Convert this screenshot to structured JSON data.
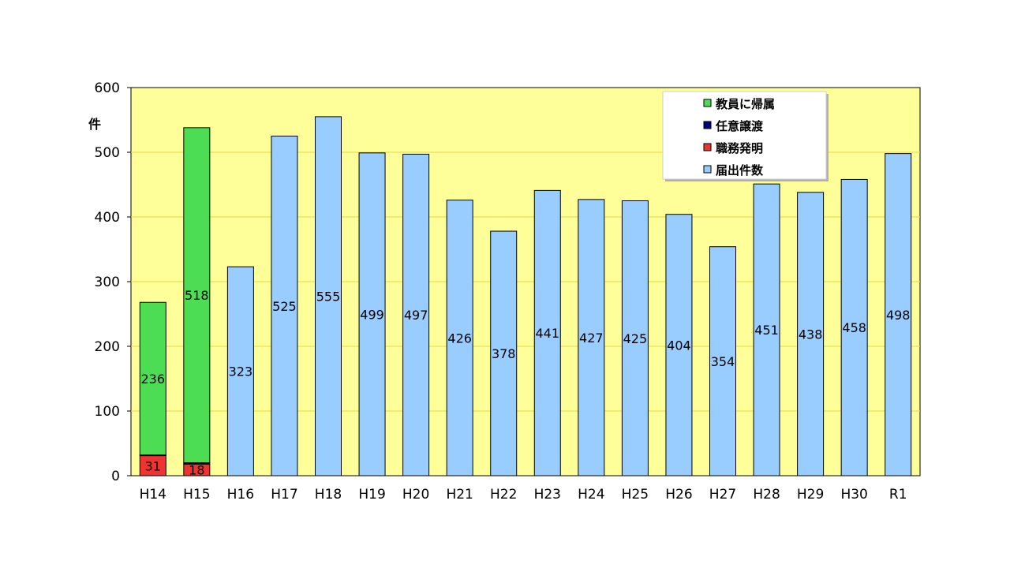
{
  "chart_data": {
    "type": "bar",
    "stacked": true,
    "ylabel": "件",
    "ylim": [
      0,
      600
    ],
    "yticks": [
      0,
      100,
      200,
      300,
      400,
      500,
      600
    ],
    "grid": true,
    "legend_position": "top-right",
    "plot_background": "#ffff99",
    "categories": [
      "H14",
      "H15",
      "H16",
      "H17",
      "H18",
      "H19",
      "H20",
      "H21",
      "H22",
      "H23",
      "H24",
      "H25",
      "H26",
      "H27",
      "H28",
      "H29",
      "H30",
      "R1"
    ],
    "series": [
      {
        "name": "職務発明",
        "color": "#ee3333",
        "values": [
          31,
          18,
          null,
          null,
          null,
          null,
          null,
          null,
          null,
          null,
          null,
          null,
          null,
          null,
          null,
          null,
          null,
          null
        ]
      },
      {
        "name": "任意譲渡",
        "color": "#000080",
        "values": [
          1,
          2,
          null,
          null,
          null,
          null,
          null,
          null,
          null,
          null,
          null,
          null,
          null,
          null,
          null,
          null,
          null,
          null
        ]
      },
      {
        "name": "教員に帰属",
        "color": "#4ddd55",
        "values": [
          236,
          518,
          null,
          null,
          null,
          null,
          null,
          null,
          null,
          null,
          null,
          null,
          null,
          null,
          null,
          null,
          null,
          null
        ]
      },
      {
        "name": "届出件数",
        "color": "#99ccff",
        "values": [
          null,
          null,
          323,
          525,
          555,
          499,
          497,
          426,
          378,
          441,
          427,
          425,
          404,
          354,
          451,
          438,
          458,
          498
        ]
      }
    ],
    "legend_order": [
      "教員に帰属",
      "任意譲渡",
      "職務発明",
      "届出件数"
    ]
  }
}
